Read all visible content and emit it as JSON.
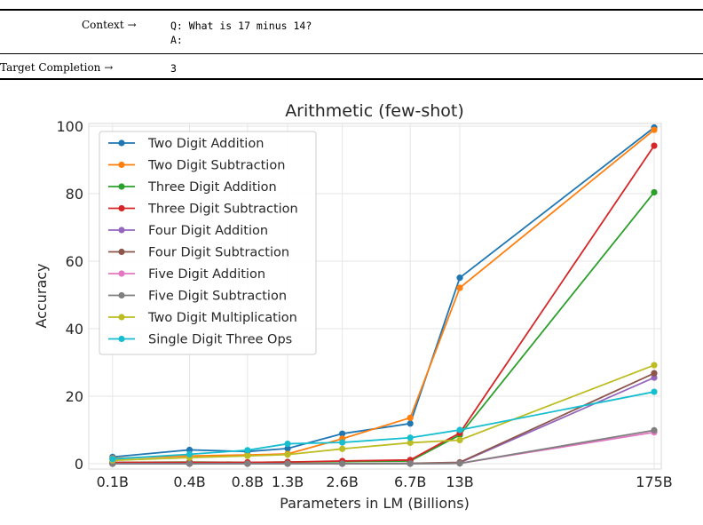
{
  "example": {
    "context_label": "Context →",
    "context_line1": "Q: What is 17 minus 14?",
    "context_line2": "A:",
    "target_label": "Target Completion →",
    "target_value": "3"
  },
  "chart_data": {
    "type": "line",
    "title": "Arithmetic (few-shot)",
    "xlabel": "Parameters in LM (Billions)",
    "ylabel": "Accuracy",
    "x_scale": "log",
    "categories": [
      "0.1B",
      "0.4B",
      "0.8B",
      "1.3B",
      "2.6B",
      "6.7B",
      "13B",
      "175B"
    ],
    "x": [
      0.125,
      0.35,
      0.76,
      1.3,
      2.7,
      6.7,
      13,
      175
    ],
    "ylim": [
      0,
      100
    ],
    "yticks": [
      0,
      20,
      40,
      60,
      80,
      100
    ],
    "grid": true,
    "legend_position": "top-left",
    "series": [
      {
        "name": "Two Digit Addition",
        "color": "#1f77b4",
        "values": [
          2.0,
          4.1,
          3.6,
          4.5,
          8.9,
          11.9,
          55.1,
          99.6
        ]
      },
      {
        "name": "Two Digit Subtraction",
        "color": "#ff7f0e",
        "values": [
          1.6,
          2.3,
          2.6,
          2.9,
          7.4,
          13.6,
          52.1,
          98.9
        ]
      },
      {
        "name": "Three Digit Addition",
        "color": "#2ca02c",
        "values": [
          0.4,
          0.5,
          0.4,
          0.5,
          0.6,
          0.8,
          8.5,
          80.4
        ]
      },
      {
        "name": "Three Digit Subtraction",
        "color": "#d62728",
        "values": [
          0.4,
          0.4,
          0.4,
          0.5,
          0.8,
          1.1,
          9.1,
          94.2
        ]
      },
      {
        "name": "Four Digit Addition",
        "color": "#9467bd",
        "values": [
          0.0,
          0.0,
          0.0,
          0.0,
          0.0,
          0.1,
          0.3,
          25.5
        ]
      },
      {
        "name": "Four Digit Subtraction",
        "color": "#8c564b",
        "values": [
          0.0,
          0.0,
          0.0,
          0.0,
          0.0,
          0.1,
          0.4,
          26.8
        ]
      },
      {
        "name": "Five Digit Addition",
        "color": "#e377c2",
        "values": [
          0.0,
          0.0,
          0.0,
          0.0,
          0.0,
          0.0,
          0.1,
          9.3
        ]
      },
      {
        "name": "Five Digit Subtraction",
        "color": "#7f7f7f",
        "values": [
          0.0,
          0.0,
          0.0,
          0.0,
          0.0,
          0.0,
          0.1,
          9.9
        ]
      },
      {
        "name": "Two Digit Multiplication",
        "color": "#bcbd22",
        "values": [
          1.0,
          1.8,
          2.3,
          2.7,
          4.4,
          6.2,
          7.0,
          29.2
        ]
      },
      {
        "name": "Single Digit Three Ops",
        "color": "#17becf",
        "values": [
          1.4,
          2.8,
          4.0,
          5.9,
          6.3,
          7.7,
          10.0,
          21.3
        ]
      }
    ]
  }
}
